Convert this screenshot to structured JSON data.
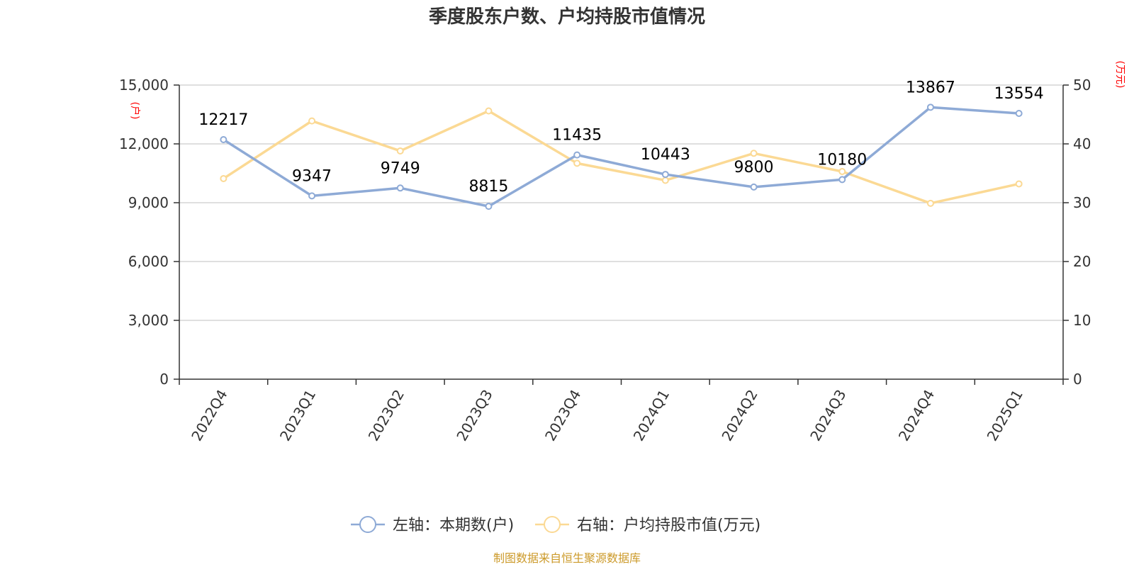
{
  "title": "季度股东户数、户均持股市值情况",
  "source": "制图数据来自恒生聚源数据库",
  "colors": {
    "series1": "#8eaad6",
    "series2": "#fbd994",
    "grid": "#cccccc",
    "axis": "#333333",
    "unit": "#ff0000",
    "source": "#cc9a2a"
  },
  "chart_data": {
    "type": "line",
    "categories": [
      "2022Q4",
      "2023Q1",
      "2023Q2",
      "2023Q3",
      "2023Q4",
      "2024Q1",
      "2024Q2",
      "2024Q3",
      "2024Q4",
      "2025Q1"
    ],
    "y_left": {
      "unit": "(户)",
      "ylim": [
        0,
        15000
      ],
      "ticks": [
        "0",
        "3,000",
        "6,000",
        "9,000",
        "12,000",
        "15,000"
      ]
    },
    "y_right": {
      "unit": "(万元)",
      "ylim": [
        0,
        50
      ],
      "ticks": [
        "0",
        "10",
        "20",
        "30",
        "40",
        "50"
      ]
    },
    "grid": true,
    "legend_position": "bottom-center",
    "series": [
      {
        "name": "左轴：本期数(户)",
        "axis": "left",
        "values": [
          12217,
          9347,
          9749,
          8815,
          11435,
          10443,
          9800,
          10180,
          13867,
          13554
        ],
        "labels": [
          "12217",
          "9347",
          "9749",
          "8815",
          "11435",
          "10443",
          "9800",
          "10180",
          "13867",
          "13554"
        ]
      },
      {
        "name": "右轴：户均持股市值(万元)",
        "axis": "right",
        "values": [
          34.1,
          43.9,
          38.8,
          45.6,
          36.7,
          33.8,
          38.4,
          35.3,
          29.9,
          33.2
        ]
      }
    ]
  }
}
